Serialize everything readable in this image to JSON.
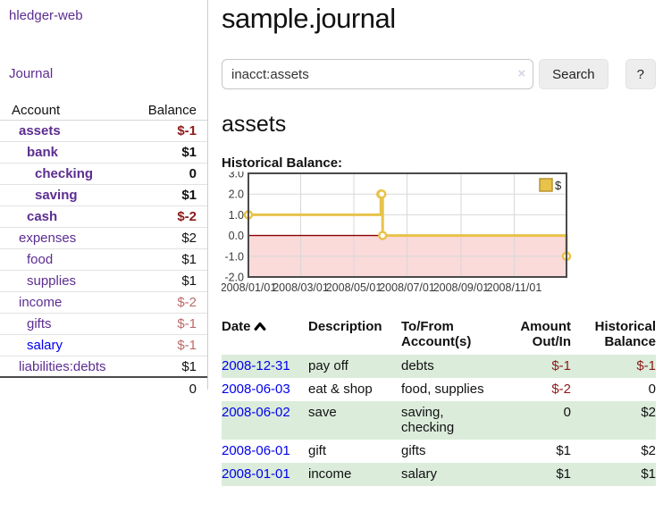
{
  "app": {
    "title": "hledger-web"
  },
  "sidebar": {
    "journal_link": "Journal",
    "accounts": {
      "header": {
        "account": "Account",
        "balance": "Balance"
      },
      "rows": [
        {
          "name": "assets",
          "balance": "$-1",
          "depth": 1,
          "bold": true,
          "balance_style": "neg-strong"
        },
        {
          "name": "bank",
          "balance": "$1",
          "depth": 2,
          "bold": true,
          "balance_style": "strong"
        },
        {
          "name": "checking",
          "balance": "0",
          "depth": 3,
          "bold": true,
          "balance_style": "strong"
        },
        {
          "name": "saving",
          "balance": "$1",
          "depth": 3,
          "bold": true,
          "balance_style": "strong"
        },
        {
          "name": "cash",
          "balance": "$-2",
          "depth": 2,
          "bold": true,
          "balance_style": "neg-strong"
        },
        {
          "name": "expenses",
          "balance": "$2",
          "depth": 1,
          "bold": false,
          "balance_style": "normal"
        },
        {
          "name": "food",
          "balance": "$1",
          "depth": 2,
          "bold": false,
          "balance_style": "normal"
        },
        {
          "name": "supplies",
          "balance": "$1",
          "depth": 2,
          "bold": false,
          "balance_style": "normal"
        },
        {
          "name": "income",
          "balance": "$-2",
          "depth": 1,
          "bold": false,
          "balance_style": "neg-soft"
        },
        {
          "name": "gifts",
          "balance": "$-1",
          "depth": 2,
          "bold": false,
          "balance_style": "neg-soft"
        },
        {
          "name": "salary",
          "balance": "$-1",
          "depth": 2,
          "bold": false,
          "balance_style": "neg-soft",
          "link_unvisited": true
        },
        {
          "name": "liabilities:debts",
          "balance": "$1",
          "depth": 1,
          "bold": false,
          "balance_style": "normal"
        }
      ],
      "total": "0"
    }
  },
  "header": {
    "title": "sample.journal"
  },
  "search": {
    "value": "inacct:assets",
    "clear_label": "×",
    "button_label": "Search",
    "help_label": "?"
  },
  "account_page": {
    "heading": "assets",
    "chart_title": "Historical Balance:"
  },
  "chart_data": {
    "type": "line",
    "step": true,
    "title": "Historical Balance",
    "legend": [
      {
        "label": "$",
        "color": "#e8c24a"
      }
    ],
    "legend_position": "top-right",
    "x_start": "2008-01-01",
    "x_end": "2008-12-31",
    "points": [
      [
        "2008-01-01",
        1
      ],
      [
        "2008-06-01",
        2
      ],
      [
        "2008-06-02",
        2
      ],
      [
        "2008-06-03",
        0
      ],
      [
        "2008-12-31",
        -1
      ]
    ],
    "ylim": [
      -2,
      3
    ],
    "yticks": [
      {
        "v": 3,
        "label": "3.0"
      },
      {
        "v": 2,
        "label": "2.0"
      },
      {
        "v": 1,
        "label": "1.0"
      },
      {
        "v": 0,
        "label": "0.0"
      },
      {
        "v": -1,
        "label": "-1.0"
      },
      {
        "v": -2,
        "label": "-2.0"
      }
    ],
    "xticks": [
      {
        "d": "2008-01-01",
        "label": "2008/01/01"
      },
      {
        "d": "2008-03-01",
        "label": "2008/03/01"
      },
      {
        "d": "2008-05-01",
        "label": "2008/05/01"
      },
      {
        "d": "2008-07-01",
        "label": "2008/07/01"
      },
      {
        "d": "2008-09-01",
        "label": "2008/09/01"
      },
      {
        "d": "2008-11-01",
        "label": "2008/11/01"
      }
    ],
    "grid": true,
    "colors": {
      "line": "#e8c24a",
      "marker_fill": "#ffffff",
      "negative_region": "#fbdada",
      "zero_line": "#8b0000",
      "gridline": "#d8d8d8",
      "border": "#4a4a4a",
      "tick_text": "#3a3a3a",
      "legend_swatch_border": "#b89530"
    }
  },
  "transactions": {
    "headers": {
      "date": "Date",
      "description": "Description",
      "accounts_line1": "To/From",
      "accounts_line2": "Account(s)",
      "amount_line1": "Amount",
      "amount_line2": "Out/In",
      "balance_line1": "Historical",
      "balance_line2": "Balance",
      "sort_icon": "chevron-up"
    },
    "rows": [
      {
        "date": "2008-12-31",
        "description": "pay off",
        "accounts": "debts",
        "amount": "$-1",
        "amount_negative": true,
        "balance": "$-1",
        "balance_negative": true,
        "shaded": true
      },
      {
        "date": "2008-06-03",
        "description": "eat & shop",
        "accounts": "food, supplies",
        "amount": "$-2",
        "amount_negative": true,
        "balance": "0",
        "balance_negative": false,
        "shaded": false
      },
      {
        "date": "2008-06-02",
        "description": "save",
        "accounts": "saving, checking",
        "amount": "0",
        "amount_negative": false,
        "balance": "$2",
        "balance_negative": false,
        "shaded": true
      },
      {
        "date": "2008-06-01",
        "description": "gift",
        "accounts": "gifts",
        "amount": "$1",
        "amount_negative": false,
        "balance": "$2",
        "balance_negative": false,
        "shaded": false
      },
      {
        "date": "2008-01-01",
        "description": "income",
        "accounts": "salary",
        "amount": "$1",
        "amount_negative": false,
        "balance": "$1",
        "balance_negative": false,
        "shaded": true
      }
    ]
  },
  "colors": {
    "link_visited": "#5c2d91",
    "link_unvisited": "#0000ee",
    "negative_strong": "#8b1a1a",
    "negative_soft": "#bb6a6a",
    "row_stripe_green": "#dbecdb",
    "sidebar_divider": "#cccccc"
  }
}
